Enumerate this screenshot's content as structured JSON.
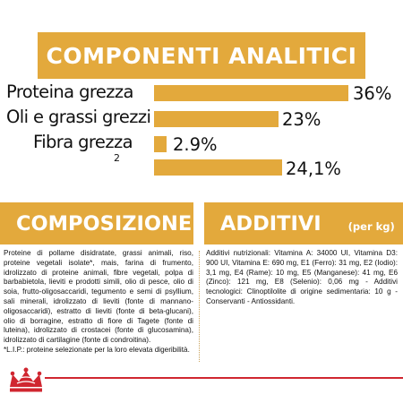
{
  "title": "COMPONENTI ANALITICI",
  "rows": [
    {
      "label": "Proteina grezza",
      "value": "36%",
      "fraction": 0.36
    },
    {
      "label": "Oli e grassi grezzi",
      "value": "23%",
      "fraction": 0.23
    },
    {
      "label": "Fibra grezza",
      "value": "2.9%",
      "fraction": 0.029
    },
    {
      "label": "2",
      "value": "24,1%",
      "fraction": 0.241
    }
  ],
  "composizione": {
    "heading": "COMPOSIZIONE",
    "text": "Proteine di pollame disidratate, grassi animali, riso, proteine vegetali isolate*, mais, farina di frumento, idrolizzato di proteine animali, fibre vegetali, polpa di barbabietola, lieviti e prodotti simili, olio di pesce, olio di soia, frutto-oligosaccaridi, tegumento e semi di psyllium, sali minerali, idrolizzato di lieviti (fonte di mannano-oligosaccaridi), estratto di lieviti (fonte di beta-glucani), olio di borragine, estratto di fiore di Tagete (fonte di luteina), idrolizzato di crostacei (fonte di glucosamina), idrolizzato di cartilagine (fonte di condroitina).",
    "footnote": "*L.I.P.: proteine selezionate per la loro elevata digeribilità."
  },
  "additivi": {
    "heading": "ADDITIVI",
    "unit": "(per kg)",
    "text": "Additivi nutrizionali: Vitamina A: 34000 UI, Vitamina D3: 900 UI, Vitamina E: 690 mg, E1 (Ferro): 31 mg, E2 (Iodio): 3,1 mg, E4 (Rame): 10 mg, E5 (Manganese): 41 mg, E6 (Zinco): 121 mg, E8 (Selenio): 0,06 mg - Additivi tecnologici: Clinoptilolite di origine sedimentaria: 10 g - Conservanti - Antiossidanti."
  },
  "colors": {
    "accent": "#e3a93c",
    "brand_red": "#d02630",
    "text": "#111111"
  },
  "logo": {
    "name": "royal-canin-crown-logo"
  }
}
